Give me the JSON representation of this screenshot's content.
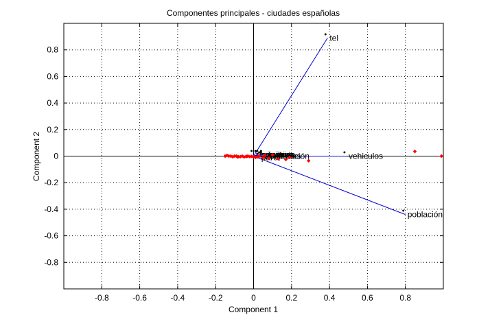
{
  "chart_data": {
    "type": "scatter",
    "title": "Componentes principales - ciudades españolas",
    "xlabel": "Component 1",
    "ylabel": "Component 2",
    "xlim": [
      -1,
      1
    ],
    "ylim": [
      -1,
      1
    ],
    "grid": true,
    "x_ticks": [
      "-0.8",
      "-0.6",
      "-0.4",
      "-0.2",
      "0",
      "0.2",
      "0.4",
      "0.6",
      "0.8"
    ],
    "y_ticks": [
      "0.8",
      "0.6",
      "0.4",
      "0.2",
      "0",
      "-0.2",
      "-0.4",
      "-0.6",
      "-0.8"
    ],
    "vector_color": "#0000cc",
    "point_color": "#ff0000",
    "vectors": [
      {
        "label": "tel",
        "x": 0.39,
        "y": 0.89
      },
      {
        "label": "vehiculos",
        "x": 0.49,
        "y": 0.0
      },
      {
        "label": "población",
        "x": 0.8,
        "y": -0.44
      },
      {
        "label": "agricultura",
        "x": 0.0,
        "y": 0.01
      },
      {
        "label": "industria",
        "x": 0.02,
        "y": 0.01
      },
      {
        "label": "servicios",
        "x": 0.03,
        "y": 0.01
      },
      {
        "label": "construcción",
        "x": 0.04,
        "y": 0.0
      },
      {
        "label": "vivienda",
        "x": 0.05,
        "y": 0.01
      },
      {
        "label": "paro",
        "x": 0.03,
        "y": -0.01
      },
      {
        "label": "ocupados",
        "x": 0.05,
        "y": 0.0
      }
    ],
    "points": [
      {
        "x": -0.15,
        "y": 0.0
      },
      {
        "x": -0.14,
        "y": 0.005
      },
      {
        "x": -0.13,
        "y": 0.0
      },
      {
        "x": -0.12,
        "y": 0.0
      },
      {
        "x": -0.11,
        "y": -0.005
      },
      {
        "x": -0.1,
        "y": 0.0
      },
      {
        "x": -0.09,
        "y": 0.0
      },
      {
        "x": -0.085,
        "y": -0.006
      },
      {
        "x": -0.08,
        "y": -0.005
      },
      {
        "x": -0.07,
        "y": -0.004
      },
      {
        "x": -0.06,
        "y": 0.0
      },
      {
        "x": -0.05,
        "y": -0.006
      },
      {
        "x": -0.04,
        "y": -0.003
      },
      {
        "x": -0.035,
        "y": -0.002
      },
      {
        "x": -0.03,
        "y": 0.0
      },
      {
        "x": -0.02,
        "y": -0.004
      },
      {
        "x": -0.01,
        "y": -0.002
      },
      {
        "x": 0.0,
        "y": -0.005
      },
      {
        "x": 0.01,
        "y": -0.01
      },
      {
        "x": 0.02,
        "y": -0.006
      },
      {
        "x": 0.03,
        "y": 0.0
      },
      {
        "x": 0.05,
        "y": -0.012
      },
      {
        "x": 0.06,
        "y": 0.005
      },
      {
        "x": 0.08,
        "y": -0.015
      },
      {
        "x": 0.1,
        "y": 0.01
      },
      {
        "x": 0.13,
        "y": -0.02
      },
      {
        "x": 0.17,
        "y": -0.025
      },
      {
        "x": 0.19,
        "y": -0.01
      },
      {
        "x": 0.29,
        "y": -0.035
      },
      {
        "x": 0.85,
        "y": 0.035
      },
      {
        "x": 0.99,
        "y": 0.0
      }
    ]
  }
}
